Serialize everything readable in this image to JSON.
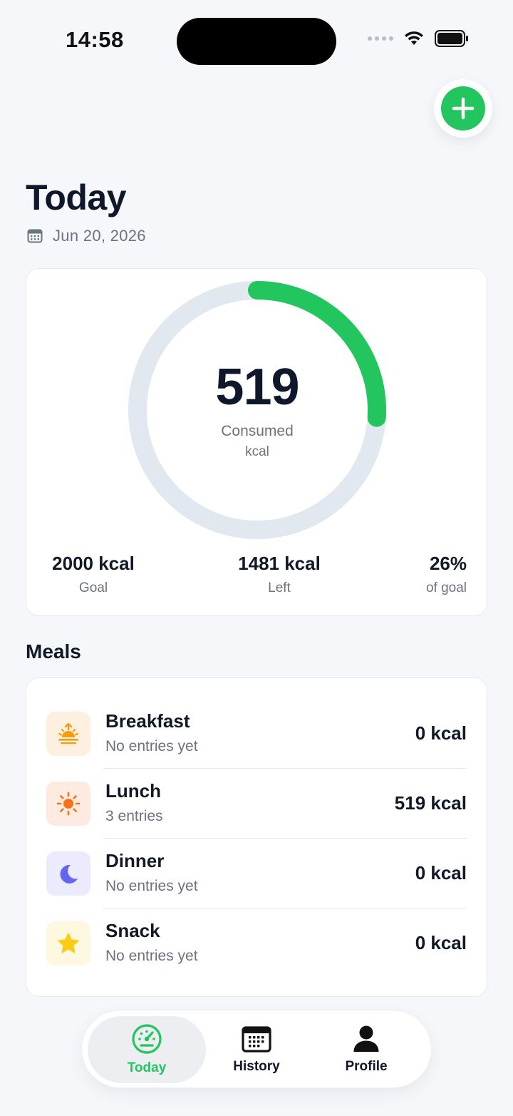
{
  "status_bar": {
    "time": "14:58"
  },
  "header": {
    "title": "Today",
    "date": "Jun 20, 2026"
  },
  "summary": {
    "consumed_value": "519",
    "consumed_label": "Consumed",
    "unit": "kcal",
    "progress_fraction": 0.26,
    "stats": [
      {
        "value": "2000 kcal",
        "label": "Goal"
      },
      {
        "value": "1481 kcal",
        "label": "Left"
      },
      {
        "value": "26%",
        "label": "of goal"
      }
    ]
  },
  "meals_section": {
    "title": "Meals",
    "items": [
      {
        "name": "Breakfast",
        "subtitle": "No entries yet",
        "kcal": "0 kcal",
        "icon": "sunrise-icon"
      },
      {
        "name": "Lunch",
        "subtitle": "3 entries",
        "kcal": "519 kcal",
        "icon": "sun-icon"
      },
      {
        "name": "Dinner",
        "subtitle": "No entries yet",
        "kcal": "0 kcal",
        "icon": "moon-icon"
      },
      {
        "name": "Snack",
        "subtitle": "No entries yet",
        "kcal": "0 kcal",
        "icon": "star-icon"
      }
    ]
  },
  "nav": {
    "items": [
      {
        "label": "Today",
        "icon": "gauge-icon",
        "active": true
      },
      {
        "label": "History",
        "icon": "calendar-icon",
        "active": false
      },
      {
        "label": "Profile",
        "icon": "person-icon",
        "active": false
      }
    ]
  },
  "colors": {
    "accent": "#22c55e",
    "ring_track": "#e2e8f0",
    "text_primary": "#0f172a",
    "text_secondary": "#6b7280"
  }
}
